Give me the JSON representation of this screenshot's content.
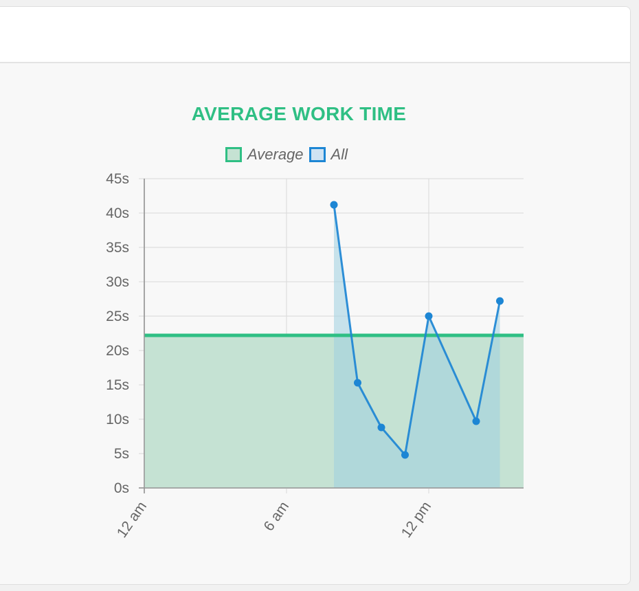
{
  "chart_data": {
    "type": "line",
    "title": "AVERAGE WORK TIME",
    "legend": [
      {
        "name": "Average",
        "color": "#2fbf84",
        "fill": "#c5e2d3"
      },
      {
        "name": "All",
        "color": "#1d86d4",
        "fill": "#cfe3f3"
      }
    ],
    "y_ticks": [
      "0s",
      "5s",
      "10s",
      "15s",
      "20s",
      "25s",
      "30s",
      "35s",
      "40s",
      "45s"
    ],
    "ylim": [
      0,
      45
    ],
    "x_ticks": [
      "12 am",
      "6 am",
      "12 pm"
    ],
    "x_tick_hours": [
      0,
      6,
      12
    ],
    "xlim_hours": [
      0,
      16
    ],
    "series": [
      {
        "name": "Average",
        "type": "horizontal-line-fill",
        "color": "#2fbf84",
        "value": 22.2
      },
      {
        "name": "All",
        "type": "line-fill",
        "color": "#1d86d4",
        "points": [
          {
            "hour": 8.0,
            "value": 41.2
          },
          {
            "hour": 9.0,
            "value": 15.3
          },
          {
            "hour": 10.0,
            "value": 8.8
          },
          {
            "hour": 11.0,
            "value": 4.8
          },
          {
            "hour": 12.0,
            "value": 25.0
          },
          {
            "hour": 14.0,
            "value": 9.7
          },
          {
            "hour": 15.0,
            "value": 27.2
          }
        ]
      }
    ],
    "grid": true,
    "legend_position": "top-center"
  }
}
